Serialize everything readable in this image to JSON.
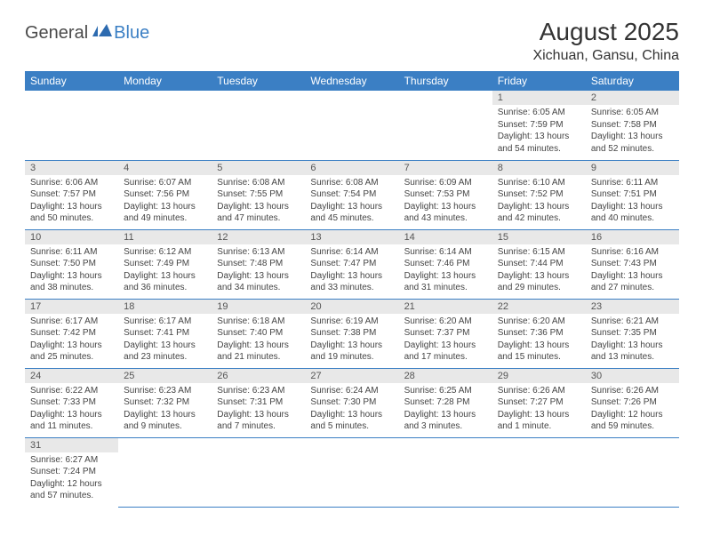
{
  "logo": {
    "general": "General",
    "blue": "Blue"
  },
  "title": "August 2025",
  "location": "Xichuan, Gansu, China",
  "colors": {
    "header_bg": "#3b7fc4",
    "header_fg": "#ffffff",
    "daynum_bg": "#e8e8e8",
    "text": "#444444",
    "rule": "#3b7fc4"
  },
  "weekdays": [
    "Sunday",
    "Monday",
    "Tuesday",
    "Wednesday",
    "Thursday",
    "Friday",
    "Saturday"
  ],
  "weeks": [
    [
      null,
      null,
      null,
      null,
      null,
      {
        "n": "1",
        "sr": "Sunrise: 6:05 AM",
        "ss": "Sunset: 7:59 PM",
        "dl": "Daylight: 13 hours and 54 minutes."
      },
      {
        "n": "2",
        "sr": "Sunrise: 6:05 AM",
        "ss": "Sunset: 7:58 PM",
        "dl": "Daylight: 13 hours and 52 minutes."
      }
    ],
    [
      {
        "n": "3",
        "sr": "Sunrise: 6:06 AM",
        "ss": "Sunset: 7:57 PM",
        "dl": "Daylight: 13 hours and 50 minutes."
      },
      {
        "n": "4",
        "sr": "Sunrise: 6:07 AM",
        "ss": "Sunset: 7:56 PM",
        "dl": "Daylight: 13 hours and 49 minutes."
      },
      {
        "n": "5",
        "sr": "Sunrise: 6:08 AM",
        "ss": "Sunset: 7:55 PM",
        "dl": "Daylight: 13 hours and 47 minutes."
      },
      {
        "n": "6",
        "sr": "Sunrise: 6:08 AM",
        "ss": "Sunset: 7:54 PM",
        "dl": "Daylight: 13 hours and 45 minutes."
      },
      {
        "n": "7",
        "sr": "Sunrise: 6:09 AM",
        "ss": "Sunset: 7:53 PM",
        "dl": "Daylight: 13 hours and 43 minutes."
      },
      {
        "n": "8",
        "sr": "Sunrise: 6:10 AM",
        "ss": "Sunset: 7:52 PM",
        "dl": "Daylight: 13 hours and 42 minutes."
      },
      {
        "n": "9",
        "sr": "Sunrise: 6:11 AM",
        "ss": "Sunset: 7:51 PM",
        "dl": "Daylight: 13 hours and 40 minutes."
      }
    ],
    [
      {
        "n": "10",
        "sr": "Sunrise: 6:11 AM",
        "ss": "Sunset: 7:50 PM",
        "dl": "Daylight: 13 hours and 38 minutes."
      },
      {
        "n": "11",
        "sr": "Sunrise: 6:12 AM",
        "ss": "Sunset: 7:49 PM",
        "dl": "Daylight: 13 hours and 36 minutes."
      },
      {
        "n": "12",
        "sr": "Sunrise: 6:13 AM",
        "ss": "Sunset: 7:48 PM",
        "dl": "Daylight: 13 hours and 34 minutes."
      },
      {
        "n": "13",
        "sr": "Sunrise: 6:14 AM",
        "ss": "Sunset: 7:47 PM",
        "dl": "Daylight: 13 hours and 33 minutes."
      },
      {
        "n": "14",
        "sr": "Sunrise: 6:14 AM",
        "ss": "Sunset: 7:46 PM",
        "dl": "Daylight: 13 hours and 31 minutes."
      },
      {
        "n": "15",
        "sr": "Sunrise: 6:15 AM",
        "ss": "Sunset: 7:44 PM",
        "dl": "Daylight: 13 hours and 29 minutes."
      },
      {
        "n": "16",
        "sr": "Sunrise: 6:16 AM",
        "ss": "Sunset: 7:43 PM",
        "dl": "Daylight: 13 hours and 27 minutes."
      }
    ],
    [
      {
        "n": "17",
        "sr": "Sunrise: 6:17 AM",
        "ss": "Sunset: 7:42 PM",
        "dl": "Daylight: 13 hours and 25 minutes."
      },
      {
        "n": "18",
        "sr": "Sunrise: 6:17 AM",
        "ss": "Sunset: 7:41 PM",
        "dl": "Daylight: 13 hours and 23 minutes."
      },
      {
        "n": "19",
        "sr": "Sunrise: 6:18 AM",
        "ss": "Sunset: 7:40 PM",
        "dl": "Daylight: 13 hours and 21 minutes."
      },
      {
        "n": "20",
        "sr": "Sunrise: 6:19 AM",
        "ss": "Sunset: 7:38 PM",
        "dl": "Daylight: 13 hours and 19 minutes."
      },
      {
        "n": "21",
        "sr": "Sunrise: 6:20 AM",
        "ss": "Sunset: 7:37 PM",
        "dl": "Daylight: 13 hours and 17 minutes."
      },
      {
        "n": "22",
        "sr": "Sunrise: 6:20 AM",
        "ss": "Sunset: 7:36 PM",
        "dl": "Daylight: 13 hours and 15 minutes."
      },
      {
        "n": "23",
        "sr": "Sunrise: 6:21 AM",
        "ss": "Sunset: 7:35 PM",
        "dl": "Daylight: 13 hours and 13 minutes."
      }
    ],
    [
      {
        "n": "24",
        "sr": "Sunrise: 6:22 AM",
        "ss": "Sunset: 7:33 PM",
        "dl": "Daylight: 13 hours and 11 minutes."
      },
      {
        "n": "25",
        "sr": "Sunrise: 6:23 AM",
        "ss": "Sunset: 7:32 PM",
        "dl": "Daylight: 13 hours and 9 minutes."
      },
      {
        "n": "26",
        "sr": "Sunrise: 6:23 AM",
        "ss": "Sunset: 7:31 PM",
        "dl": "Daylight: 13 hours and 7 minutes."
      },
      {
        "n": "27",
        "sr": "Sunrise: 6:24 AM",
        "ss": "Sunset: 7:30 PM",
        "dl": "Daylight: 13 hours and 5 minutes."
      },
      {
        "n": "28",
        "sr": "Sunrise: 6:25 AM",
        "ss": "Sunset: 7:28 PM",
        "dl": "Daylight: 13 hours and 3 minutes."
      },
      {
        "n": "29",
        "sr": "Sunrise: 6:26 AM",
        "ss": "Sunset: 7:27 PM",
        "dl": "Daylight: 13 hours and 1 minute."
      },
      {
        "n": "30",
        "sr": "Sunrise: 6:26 AM",
        "ss": "Sunset: 7:26 PM",
        "dl": "Daylight: 12 hours and 59 minutes."
      }
    ],
    [
      {
        "n": "31",
        "sr": "Sunrise: 6:27 AM",
        "ss": "Sunset: 7:24 PM",
        "dl": "Daylight: 12 hours and 57 minutes."
      },
      null,
      null,
      null,
      null,
      null,
      null
    ]
  ]
}
